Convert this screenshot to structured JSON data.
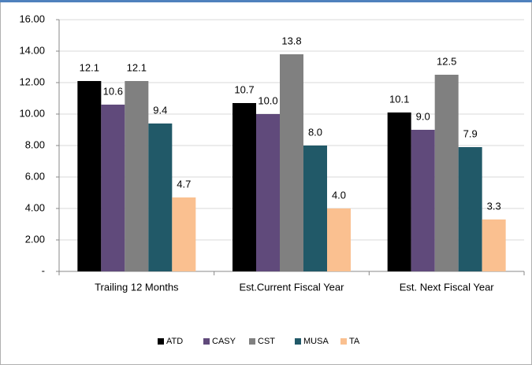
{
  "chart_data": {
    "type": "bar",
    "categories": [
      "Trailing 12 Months",
      "Est.Current Fiscal Year",
      "Est. Next Fiscal Year"
    ],
    "series": [
      {
        "name": "ATD",
        "color": "#000000",
        "values": [
          12.1,
          10.7,
          10.1
        ],
        "value_labels": [
          "12.1",
          "10.7",
          "10.1"
        ]
      },
      {
        "name": "CASY",
        "color": "#604a7b",
        "values": [
          10.6,
          10.0,
          9.0
        ],
        "value_labels": [
          "10.6",
          "10.0",
          "9.0"
        ]
      },
      {
        "name": "CST",
        "color": "#808080",
        "values": [
          12.1,
          13.8,
          12.5
        ],
        "value_labels": [
          "12.1",
          "13.8",
          "12.5"
        ]
      },
      {
        "name": "MUSA",
        "color": "#215968",
        "values": [
          9.4,
          8.0,
          7.9
        ],
        "value_labels": [
          "9.4",
          "8.0",
          "7.9"
        ]
      },
      {
        "name": "TA",
        "color": "#fac090",
        "values": [
          4.7,
          4.0,
          3.3
        ],
        "value_labels": [
          "4.7",
          "4.0",
          "3.3"
        ]
      }
    ],
    "ylim": [
      0,
      16
    ],
    "yticks": [
      {
        "value": 0,
        "label": "-"
      },
      {
        "value": 2,
        "label": "2.00"
      },
      {
        "value": 4,
        "label": "4.00"
      },
      {
        "value": 6,
        "label": "6.00"
      },
      {
        "value": 8,
        "label": "8.00"
      },
      {
        "value": 10,
        "label": "10.00"
      },
      {
        "value": 12,
        "label": "12.00"
      },
      {
        "value": 14,
        "label": "14.00"
      },
      {
        "value": 16,
        "label": "16.00"
      }
    ],
    "grid": true,
    "legend": "bottom"
  }
}
